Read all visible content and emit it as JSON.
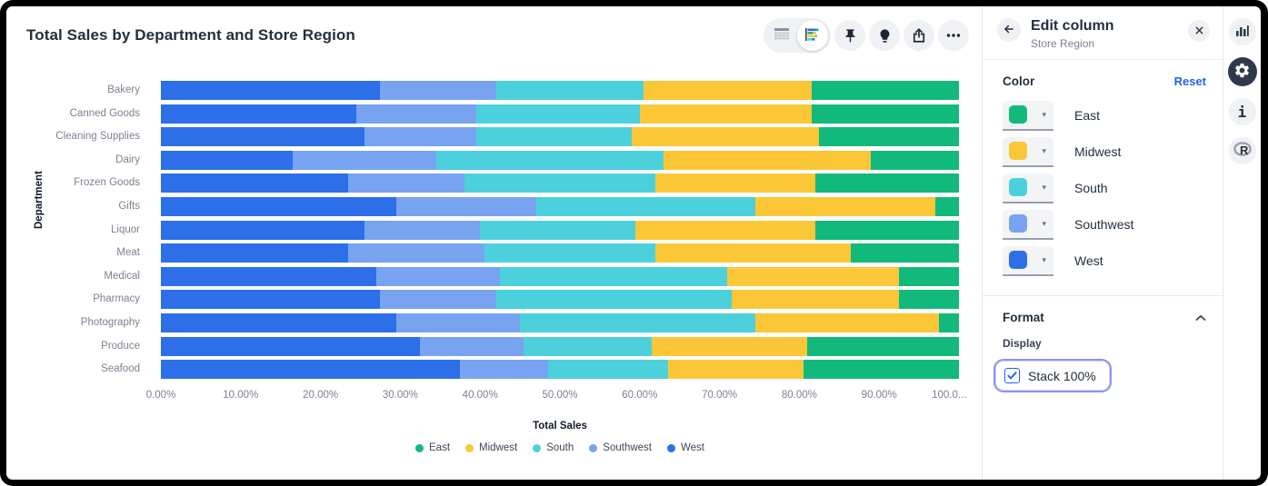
{
  "chart": {
    "title": "Total Sales by Department and Store Region",
    "xlabel": "Total Sales",
    "ylabel": "Department",
    "x_ticks": [
      "0.00%",
      "10.00%",
      "20.00%",
      "30.00%",
      "40.00%",
      "50.00%",
      "60.00%",
      "70.00%",
      "80.00%",
      "90.00%",
      "100.0..."
    ],
    "legend": [
      {
        "label": "East",
        "color": "#12b97d"
      },
      {
        "label": "Midwest",
        "color": "#fbc737"
      },
      {
        "label": "South",
        "color": "#4cd1dc"
      },
      {
        "label": "Southwest",
        "color": "#78a3f0"
      },
      {
        "label": "West",
        "color": "#2c6fe8"
      }
    ]
  },
  "chart_data": {
    "type": "bar",
    "orientation": "horizontal",
    "stacked": true,
    "stack_100_percent": true,
    "title": "Total Sales by Department and Store Region",
    "xlabel": "Total Sales",
    "ylabel": "Department",
    "xlim_percent": [
      0,
      100
    ],
    "grid": false,
    "legend_position": "bottom",
    "categories": [
      "Bakery",
      "Canned Goods",
      "Cleaning Supplies",
      "Dairy",
      "Frozen Goods",
      "Gifts",
      "Liquor",
      "Meat",
      "Medical",
      "Pharmacy",
      "Photography",
      "Produce",
      "Seafood"
    ],
    "series_render_order_left_to_right": [
      "West",
      "Southwest",
      "South",
      "Midwest",
      "East"
    ],
    "series": [
      {
        "name": "West",
        "color": "#2c6fe8",
        "values": [
          27.5,
          24.5,
          25.5,
          16.5,
          23.5,
          29.5,
          25.5,
          23.5,
          27.0,
          27.5,
          29.5,
          32.5,
          37.5
        ]
      },
      {
        "name": "Southwest",
        "color": "#78a3f0",
        "values": [
          14.5,
          15.0,
          14.0,
          18.0,
          14.5,
          17.5,
          14.5,
          17.0,
          15.5,
          14.5,
          15.5,
          13.0,
          11.0
        ]
      },
      {
        "name": "South",
        "color": "#4cd1dc",
        "values": [
          18.5,
          20.5,
          19.5,
          28.5,
          24.0,
          27.5,
          19.5,
          21.5,
          28.5,
          29.5,
          29.5,
          16.0,
          15.0
        ]
      },
      {
        "name": "Midwest",
        "color": "#fbc737",
        "values": [
          21.0,
          21.5,
          23.5,
          26.0,
          20.0,
          22.5,
          22.5,
          24.5,
          21.5,
          21.0,
          23.0,
          19.5,
          17.0
        ]
      },
      {
        "name": "East",
        "color": "#12b97d",
        "values": [
          18.5,
          18.5,
          17.5,
          11.0,
          18.0,
          3.0,
          18.0,
          13.5,
          7.5,
          7.5,
          2.5,
          19.0,
          19.5
        ]
      }
    ],
    "values_unit": "percent of department total"
  },
  "toolbar": {
    "icons": [
      "table-view-icon",
      "chart-view-icon",
      "pin-icon",
      "lightbulb-icon",
      "share-icon",
      "more-icon"
    ],
    "active_view": "chart"
  },
  "panel": {
    "title": "Edit column",
    "subtitle": "Store Region",
    "color_section": {
      "label": "Color",
      "reset_label": "Reset",
      "items": [
        {
          "name": "East",
          "color": "#12b97d"
        },
        {
          "name": "Midwest",
          "color": "#fbc737"
        },
        {
          "name": "South",
          "color": "#4cd1dc"
        },
        {
          "name": "Southwest",
          "color": "#78a3f0"
        },
        {
          "name": "West",
          "color": "#2c6fe8"
        }
      ]
    },
    "format_section": {
      "label": "Format",
      "display_label": "Display",
      "checkbox_label": "Stack 100%",
      "checkbox_checked": true
    }
  },
  "right_rail": {
    "icons": [
      "bar-chart-icon",
      "settings-gear-icon",
      "info-icon",
      "r-logo-icon"
    ],
    "active": "settings-gear-icon"
  },
  "colors": {
    "accent_blue": "#2264e5",
    "focus_ring": "#8a93f5",
    "title_text": "#232f3e",
    "muted_text": "#7a8291"
  }
}
